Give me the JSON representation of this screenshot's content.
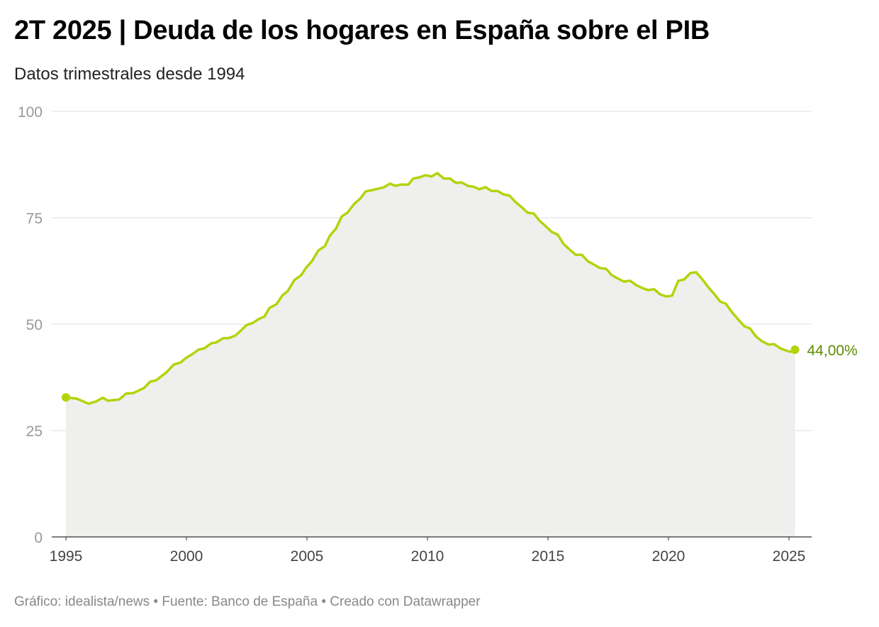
{
  "chart_data": {
    "type": "area",
    "title": "2T 2025 | Deuda de los hogares en España sobre el PIB",
    "subtitle": "Datos trimestrales desde 1994",
    "xlabel": "",
    "ylabel": "",
    "xlim": [
      1995,
      2025.25
    ],
    "ylim": [
      0,
      100
    ],
    "yticks": [
      0,
      25,
      50,
      75,
      100
    ],
    "xticks": [
      1995,
      2000,
      2005,
      2010,
      2015,
      2020,
      2025
    ],
    "grid": true,
    "colors": {
      "line": "#b3d30c",
      "fill": "#efefee",
      "label": "#5c8a00",
      "grid": "#dddddd"
    },
    "end_label": "44,00%",
    "series": [
      {
        "x": [
          1995.0,
          1995.44,
          1995.94,
          1996.24,
          1996.53,
          1996.74,
          1997.21,
          1997.5,
          1997.79,
          1998.24,
          1998.5,
          1998.74,
          1999.18,
          1999.47,
          1999.76,
          1999.97,
          2000.26,
          2000.5,
          2000.74,
          2001.03,
          2001.24,
          2001.53,
          2001.74,
          2002.03,
          2002.26,
          2002.5,
          2002.76,
          2003.0,
          2003.24,
          2003.44,
          2003.74,
          2003.97,
          2004.21,
          2004.47,
          2004.76,
          2004.97,
          2005.21,
          2005.47,
          2005.74,
          2005.94,
          2006.21,
          2006.44,
          2006.68,
          2006.97,
          2007.21,
          2007.44,
          2007.71,
          2007.94,
          2008.21,
          2008.44,
          2008.68,
          2008.91,
          2009.21,
          2009.41,
          2009.68,
          2009.91,
          2010.18,
          2010.41,
          2010.68,
          2010.94,
          2011.18,
          2011.41,
          2011.68,
          2011.91,
          2012.15,
          2012.41,
          2012.65,
          2012.91,
          2013.15,
          2013.41,
          2013.65,
          2013.91,
          2014.15,
          2014.41,
          2014.65,
          2014.91,
          2015.15,
          2015.41,
          2015.65,
          2015.91,
          2016.15,
          2016.41,
          2016.65,
          2016.91,
          2017.15,
          2017.41,
          2017.65,
          2017.91,
          2018.15,
          2018.41,
          2018.65,
          2018.91,
          2019.15,
          2019.41,
          2019.65,
          2019.91,
          2020.15,
          2020.41,
          2020.65,
          2020.91,
          2021.15,
          2021.41,
          2021.65,
          2021.91,
          2022.15,
          2022.38,
          2022.65,
          2022.88,
          2023.15,
          2023.38,
          2023.65,
          2023.88,
          2024.15,
          2024.38,
          2024.65,
          2024.88,
          2025.05,
          2025.25
        ],
        "values": [
          32.8,
          32.5,
          31.3,
          31.8,
          32.7,
          32.0,
          32.3,
          33.7,
          33.8,
          35.0,
          36.5,
          36.8,
          38.7,
          40.5,
          41.0,
          42.0,
          43.0,
          44.0,
          44.3,
          45.5,
          45.7,
          46.7,
          46.7,
          47.3,
          48.5,
          49.8,
          50.3,
          51.2,
          51.8,
          53.8,
          54.7,
          56.7,
          57.8,
          60.3,
          61.5,
          63.3,
          64.8,
          67.3,
          68.3,
          70.7,
          72.5,
          75.3,
          76.2,
          78.3,
          79.5,
          81.2,
          81.5,
          81.8,
          82.2,
          83.0,
          82.5,
          82.8,
          82.8,
          84.2,
          84.5,
          85.0,
          84.7,
          85.5,
          84.2,
          84.2,
          83.2,
          83.3,
          82.5,
          82.3,
          81.7,
          82.2,
          81.3,
          81.3,
          80.5,
          80.2,
          78.7,
          77.5,
          76.2,
          76.0,
          74.3,
          73.0,
          71.7,
          71.0,
          68.8,
          67.5,
          66.3,
          66.3,
          64.8,
          64.0,
          63.2,
          63.0,
          61.5,
          60.7,
          60.0,
          60.2,
          59.2,
          58.5,
          58.0,
          58.2,
          57.0,
          56.5,
          56.7,
          60.2,
          60.5,
          62.0,
          62.2,
          60.5,
          58.7,
          57.0,
          55.3,
          54.8,
          52.7,
          51.2,
          49.5,
          49.0,
          47.0,
          46.0,
          45.2,
          45.3,
          44.3,
          43.8,
          43.5,
          44.0
        ]
      }
    ]
  },
  "footer": "Gráfico: idealista/news • Fuente: Banco de España • Creado con Datawrapper"
}
